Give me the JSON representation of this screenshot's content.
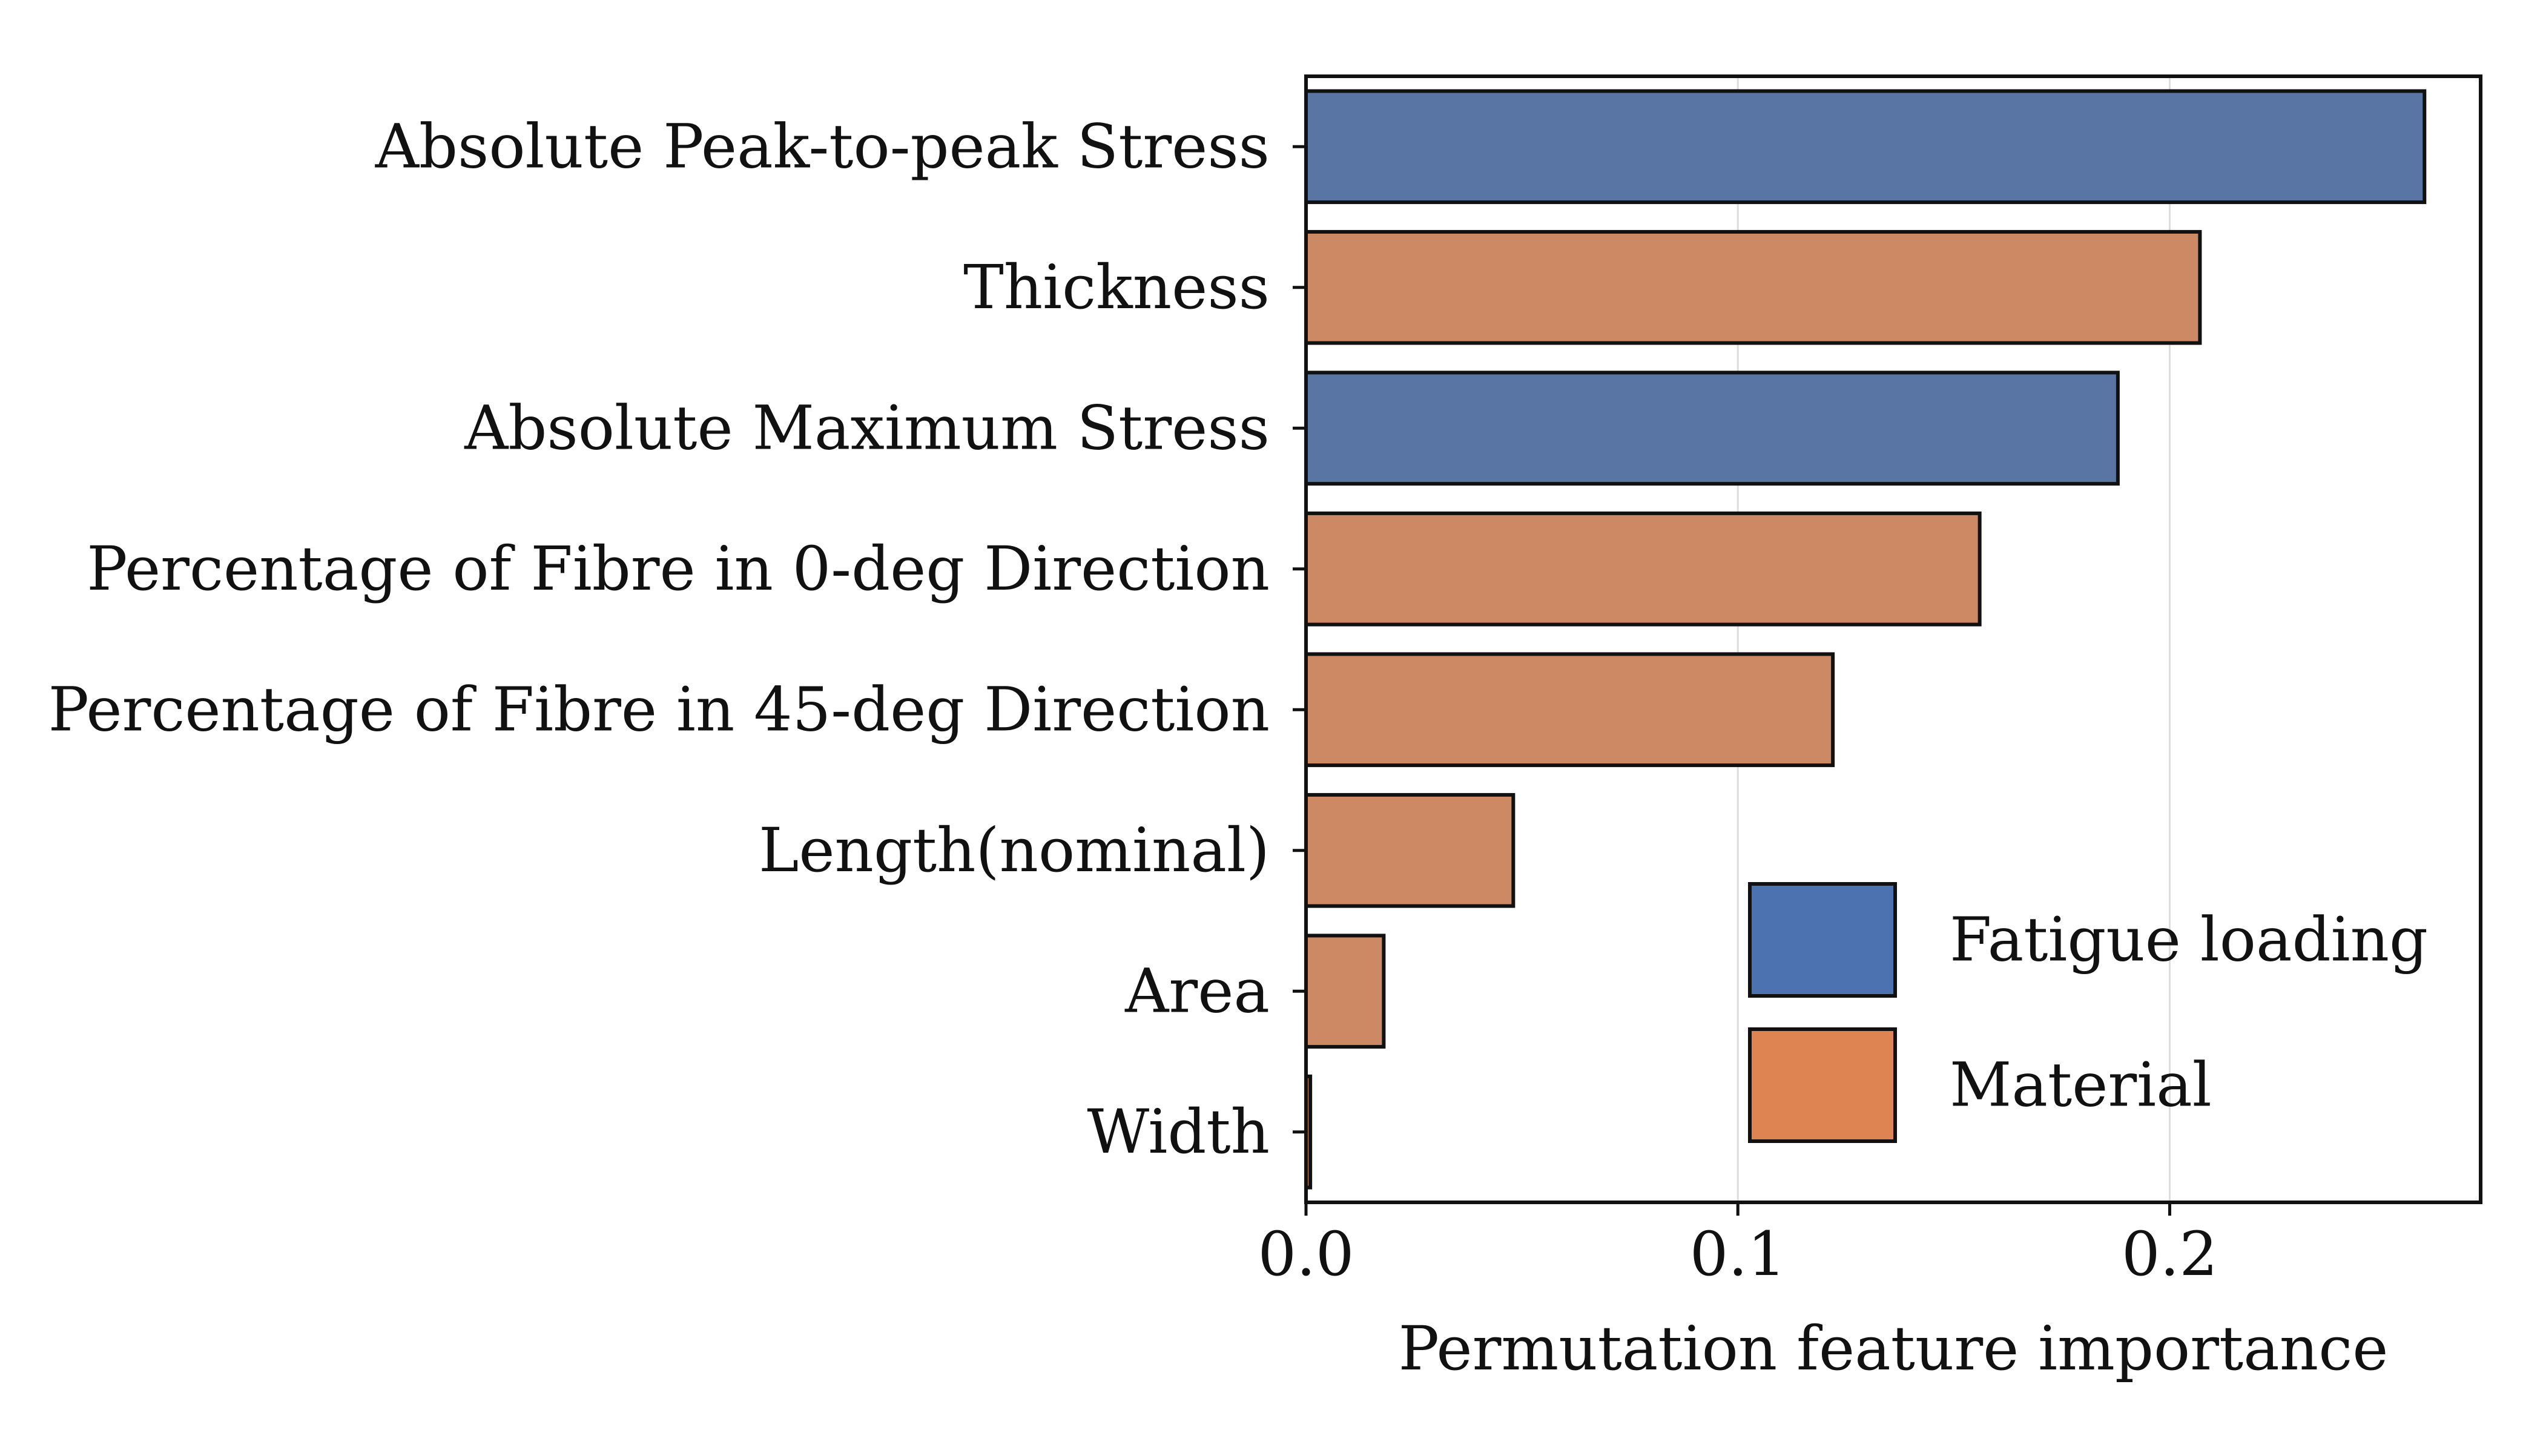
{
  "chart_data": {
    "type": "bar",
    "orientation": "horizontal",
    "categories": [
      "Absolute Peak-to-peak Stress",
      "Thickness",
      "Absolute Maximum Stress",
      "Percentage of Fibre in 0-deg Direction",
      "Percentage of Fibre in 45-deg Direction",
      "Length(nominal)",
      "Area",
      "Width"
    ],
    "values": [
      0.259,
      0.207,
      0.188,
      0.156,
      0.122,
      0.048,
      0.018,
      0.001
    ],
    "groups": [
      "Fatigue loading",
      "Material",
      "Fatigue loading",
      "Material",
      "Material",
      "Material",
      "Material",
      "Material"
    ],
    "xlabel": "Permutation feature importance",
    "xticks": [
      0.0,
      0.1,
      0.2
    ],
    "xtick_labels": [
      "0.0",
      "0.1",
      "0.2"
    ],
    "xlim": [
      0.0,
      0.272
    ],
    "grid": "vertical",
    "legend": {
      "position": "lower-right",
      "entries": [
        {
          "label": "Fatigue loading",
          "color": "#4c72b0"
        },
        {
          "label": "Material",
          "color": "#dd8452"
        }
      ]
    },
    "colors": {
      "Fatigue loading": "#5975a4",
      "Material": "#cc8963"
    }
  }
}
